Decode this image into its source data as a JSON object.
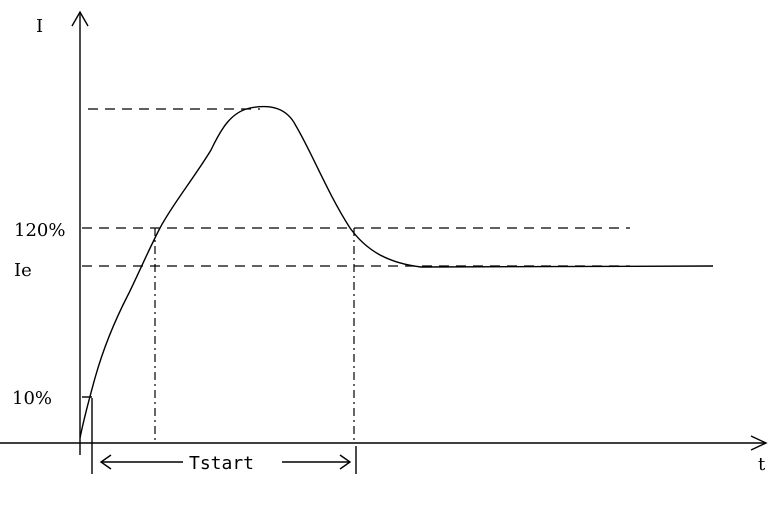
{
  "labels": {
    "y_axis": "I",
    "x_axis": "t",
    "level_120": "120%",
    "level_ie": "Ie",
    "level_10": "10%",
    "tstart": "Tstart"
  }
}
